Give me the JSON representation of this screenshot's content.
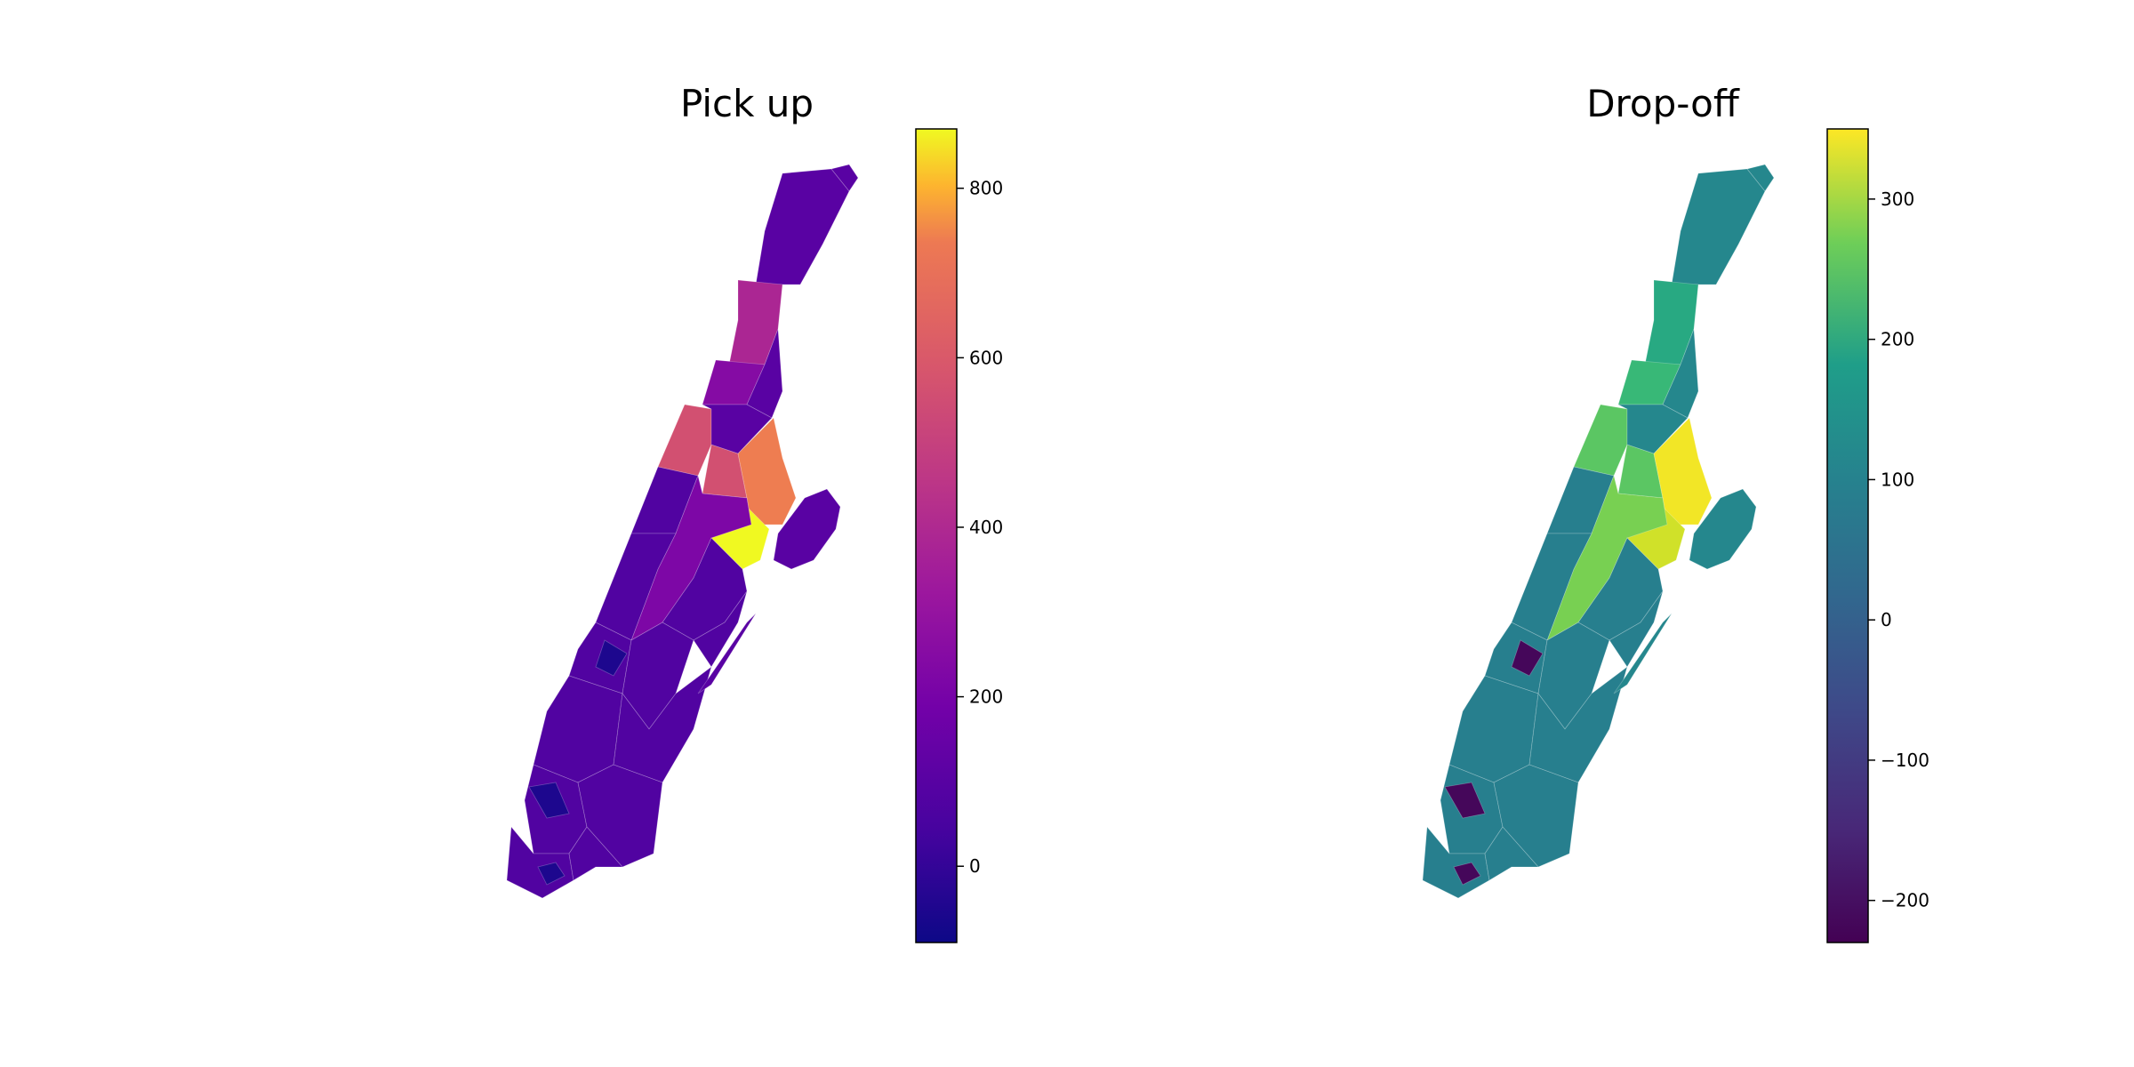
{
  "panels": [
    {
      "title": "Pick up",
      "colormap": "plasma",
      "colorbar": {
        "min": -90,
        "max": 870,
        "ticks": [
          800,
          600,
          400,
          200,
          0
        ],
        "tick_labels": [
          "800",
          "600",
          "400",
          "200",
          "0"
        ]
      },
      "region_levels": {
        "north": 60,
        "upper": 280,
        "mid_upper": 170,
        "mid": 420,
        "east_peak": 560,
        "yellow_peak": 870,
        "midtown": 150,
        "lower": 40,
        "dark": -60
      }
    },
    {
      "title": "Drop-off",
      "colormap": "viridis",
      "colorbar": {
        "min": -230,
        "max": 350,
        "ticks": [
          300,
          200,
          100,
          0,
          -100,
          -200
        ],
        "tick_labels": [
          "300",
          "200",
          "100",
          "0",
          "−100",
          "−200"
        ]
      },
      "region_levels": {
        "north": 40,
        "upper": 120,
        "mid_upper": 160,
        "mid": 200,
        "east_peak": 340,
        "yellow_peak": 310,
        "midtown": 230,
        "lower": 20,
        "dark": -220
      }
    }
  ]
}
